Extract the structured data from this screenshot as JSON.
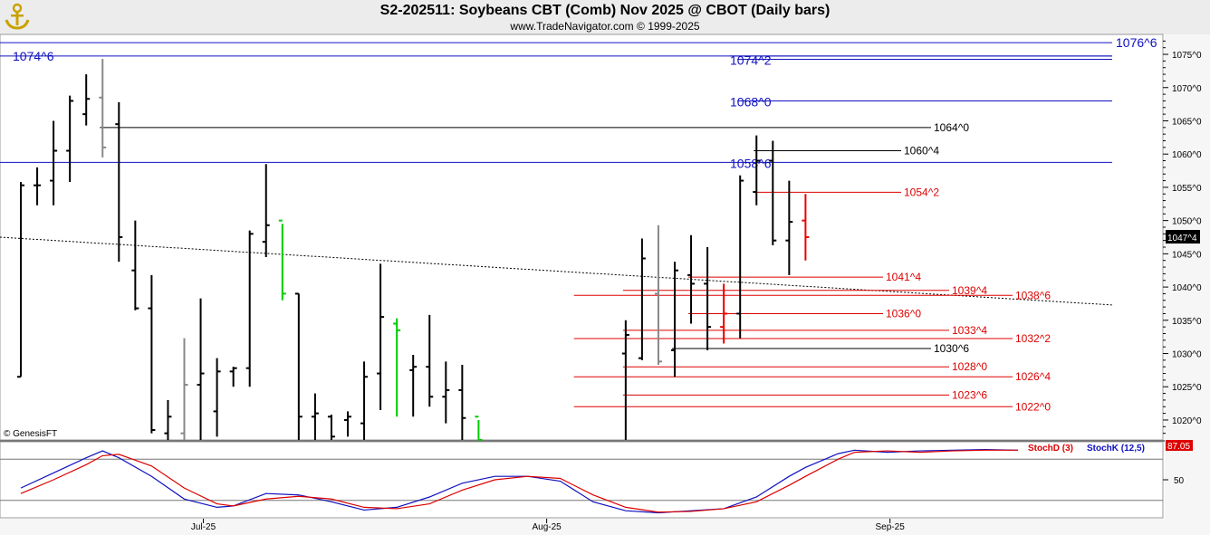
{
  "header": {
    "title": "S2-202511:  Soybeans CBT (Comb) Nov 2025 @ CBOT  (Daily bars)",
    "subtitle": "www.TradeNavigator.com © 1999-2025",
    "logo_icon": "anchor-icon"
  },
  "copyright": "© GenesisFT",
  "colors": {
    "up_bar": "#000000",
    "down_bar": "#000000",
    "highlight_green": "#00cc00",
    "highlight_red": "#ee0000",
    "gray_bar": "#888888",
    "blue_level": "#1010c0",
    "red_level": "#dd0000",
    "black_level": "#000000",
    "stochD": "#dd0000",
    "stochK": "#1010c0"
  },
  "chart_data": [
    {
      "type": "bar",
      "title": "S2-202511:  Soybeans CBT (Comb) Nov 2025 @ CBOT  (Daily bars)",
      "x_ticks": [
        {
          "label": "Jul-25",
          "bar_index": 11
        },
        {
          "label": "Aug-25",
          "bar_index": 32
        },
        {
          "label": "Sep-25",
          "bar_index": 53
        }
      ],
      "y_range": [
        1017,
        1078
      ],
      "y_tick_values": [
        1020,
        1025,
        1030,
        1035,
        1040,
        1045,
        1050,
        1055,
        1060,
        1065,
        1070,
        1075
      ],
      "y_tick_labels": [
        "1020^0",
        "1025^0",
        "1030^0",
        "1035^0",
        "1040^0",
        "1045^0",
        "1050^0",
        "1055^0",
        "1060^0",
        "1065^0",
        "1070^0",
        "1075^0"
      ],
      "last_price_label": "1047^4",
      "last_price": 1047.5,
      "bars": [
        {
          "i": 0,
          "o": 1026.5,
          "h": 1055.8,
          "l": 1026.5,
          "c": 1055.3
        },
        {
          "i": 1,
          "o": 1055.3,
          "h": 1058.0,
          "l": 1052.3,
          "c": 1055.3
        },
        {
          "i": 2,
          "o": 1056.0,
          "h": 1065.0,
          "l": 1052.3,
          "c": 1060.5
        },
        {
          "i": 3,
          "o": 1060.5,
          "h": 1068.8,
          "l": 1055.8,
          "c": 1068.0
        },
        {
          "i": 4,
          "o": 1066.0,
          "h": 1072.0,
          "l": 1064.3,
          "c": 1068.3
        },
        {
          "i": 5,
          "o": 1068.5,
          "h": 1074.3,
          "l": 1059.5,
          "c": 1061.0,
          "color": "gray"
        },
        {
          "i": 6,
          "o": 1064.5,
          "h": 1067.8,
          "l": 1043.8,
          "c": 1047.5
        },
        {
          "i": 7,
          "o": 1042.5,
          "h": 1050.0,
          "l": 1036.5,
          "c": 1036.8
        },
        {
          "i": 8,
          "o": 1036.8,
          "h": 1041.8,
          "l": 1018.0,
          "c": 1018.5
        },
        {
          "i": 9,
          "o": 1018.0,
          "h": 1023.0,
          "l": 1017.0,
          "c": 1020.5
        },
        {
          "i": 10,
          "o": 1018.0,
          "h": 1032.3,
          "l": 1017.0,
          "c": 1025.3,
          "color": "gray"
        },
        {
          "i": 11,
          "o": 1025.3,
          "h": 1038.3,
          "l": 1017.0,
          "c": 1027.0
        },
        {
          "i": 12,
          "o": 1021.3,
          "h": 1029.3,
          "l": 1017.5,
          "c": 1027.3
        },
        {
          "i": 13,
          "o": 1027.3,
          "h": 1028.0,
          "l": 1025.0,
          "c": 1027.8
        },
        {
          "i": 14,
          "o": 1027.8,
          "h": 1048.5,
          "l": 1025.0,
          "c": 1048.0
        },
        {
          "i": 15,
          "o": 1046.8,
          "h": 1058.5,
          "l": 1044.5,
          "c": 1049.3
        },
        {
          "i": 16,
          "o": 1050.0,
          "h": 1049.5,
          "l": 1038.0,
          "c": 1039.0,
          "color": "green"
        },
        {
          "i": 17,
          "o": 1039.0,
          "h": 1039.0,
          "l": 1017.0,
          "c": 1020.5
        },
        {
          "i": 18,
          "o": 1020.5,
          "h": 1024.0,
          "l": 1017.0,
          "c": 1021.0
        },
        {
          "i": 19,
          "o": 1020.5,
          "h": 1020.8,
          "l": 1017.0,
          "c": 1017.5
        },
        {
          "i": 20,
          "o": 1020.0,
          "h": 1021.3,
          "l": 1017.5,
          "c": 1020.5
        },
        {
          "i": 21,
          "o": 1019.5,
          "h": 1028.8,
          "l": 1017.0,
          "c": 1026.5
        },
        {
          "i": 22,
          "o": 1027.0,
          "h": 1043.5,
          "l": 1021.5,
          "c": 1035.5
        },
        {
          "i": 23,
          "o": 1034.5,
          "h": 1035.3,
          "l": 1020.5,
          "c": 1033.5,
          "color": "green"
        },
        {
          "i": 24,
          "o": 1027.5,
          "h": 1029.8,
          "l": 1020.5,
          "c": 1028.0
        },
        {
          "i": 25,
          "o": 1028.0,
          "h": 1035.8,
          "l": 1022.0,
          "c": 1023.5
        },
        {
          "i": 26,
          "o": 1023.5,
          "h": 1028.8,
          "l": 1019.5,
          "c": 1024.5
        },
        {
          "i": 27,
          "o": 1024.5,
          "h": 1028.3,
          "l": 1017.0,
          "c": 1020.3
        },
        {
          "i": 28,
          "o": 1020.5,
          "h": 1020.0,
          "l": 1017.0,
          "c": 1017.0,
          "color": "green"
        },
        {
          "i": 37,
          "o": 1030.0,
          "h": 1035.0,
          "l": 1017.0,
          "c": 1032.8
        },
        {
          "i": 38,
          "o": 1029.3,
          "h": 1047.3,
          "l": 1029.0,
          "c": 1044.3
        },
        {
          "i": 39,
          "o": 1039.0,
          "h": 1049.3,
          "l": 1028.3,
          "c": 1028.8,
          "color": "gray"
        },
        {
          "i": 40,
          "o": 1030.5,
          "h": 1043.8,
          "l": 1026.5,
          "c": 1042.5
        },
        {
          "i": 41,
          "o": 1041.8,
          "h": 1047.8,
          "l": 1034.5,
          "c": 1040.5
        },
        {
          "i": 42,
          "o": 1040.5,
          "h": 1046.0,
          "l": 1030.5,
          "c": 1034.0
        },
        {
          "i": 43,
          "o": 1034.0,
          "h": 1040.5,
          "l": 1031.5,
          "c": 1036.0,
          "color": "red"
        },
        {
          "i": 44,
          "o": 1036.0,
          "h": 1056.8,
          "l": 1032.3,
          "c": 1056.0
        },
        {
          "i": 45,
          "o": 1054.3,
          "h": 1062.8,
          "l": 1052.3,
          "c": 1059.0
        },
        {
          "i": 46,
          "o": 1059.0,
          "h": 1062.0,
          "l": 1046.3,
          "c": 1047.0
        },
        {
          "i": 47,
          "o": 1047.0,
          "h": 1056.0,
          "l": 1041.8,
          "c": 1049.8
        },
        {
          "i": 48,
          "o": 1050.0,
          "h": 1054.0,
          "l": 1044.0,
          "c": 1047.5,
          "color": "red"
        }
      ],
      "levels": [
        {
          "label": "1076^6",
          "value": 1076.75,
          "color": "blue",
          "from_bar": -1
        },
        {
          "label": "1074^6",
          "value": 1074.75,
          "color": "blue",
          "from_bar": -1
        },
        {
          "label": "1074^2",
          "value": 1074.25,
          "color": "blue",
          "from_bar": 44
        },
        {
          "label": "1068^0",
          "value": 1068.0,
          "color": "blue",
          "from_bar": 44
        },
        {
          "label": "1058^6",
          "value": 1058.75,
          "color": "blue",
          "from_bar": -1
        },
        {
          "label": "1064^0",
          "value": 1064.0,
          "color": "black",
          "from_bar": 5
        },
        {
          "label": "1060^4",
          "value": 1060.5,
          "color": "black",
          "from_bar": 45
        },
        {
          "label": "1054^2",
          "value": 1054.25,
          "color": "red",
          "from_bar": 45
        },
        {
          "label": "1041^4",
          "value": 1041.5,
          "color": "red",
          "from_bar": 41
        },
        {
          "label": "1039^4",
          "value": 1039.5,
          "color": "red",
          "from_bar": 37
        },
        {
          "label": "1038^6",
          "value": 1038.75,
          "color": "red",
          "from_bar": 34
        },
        {
          "label": "1036^0",
          "value": 1036.0,
          "color": "red",
          "from_bar": 41
        },
        {
          "label": "1033^4",
          "value": 1033.5,
          "color": "red",
          "from_bar": 37
        },
        {
          "label": "1032^2",
          "value": 1032.25,
          "color": "red",
          "from_bar": 34
        },
        {
          "label": "1030^6",
          "value": 1030.75,
          "color": "black",
          "from_bar": 40
        },
        {
          "label": "1028^0",
          "value": 1028.0,
          "color": "red",
          "from_bar": 37
        },
        {
          "label": "1026^4",
          "value": 1026.5,
          "color": "red",
          "from_bar": 34
        },
        {
          "label": "1023^6",
          "value": 1023.75,
          "color": "red",
          "from_bar": 37
        },
        {
          "label": "1022^0",
          "value": 1022.0,
          "color": "red",
          "from_bar": 34
        }
      ],
      "trendline": {
        "style": "dotted",
        "start_value": 1047.5,
        "end_value": 1037.3
      }
    },
    {
      "type": "line",
      "legend": [
        "StochD (3)",
        "StochK (12,5)"
      ],
      "legend_placement": "top-right",
      "last_value_label": "87.05",
      "y_range": [
        0,
        100
      ],
      "y_tick_labels": [
        "50"
      ],
      "reference_levels": [
        80,
        20
      ],
      "series": [
        {
          "name": "StochK (12,5)",
          "values": [
            [
              0,
              38
            ],
            [
              2,
              60
            ],
            [
              4,
              82
            ],
            [
              5,
              92
            ],
            [
              6,
              82
            ],
            [
              8,
              55
            ],
            [
              10,
              22
            ],
            [
              12,
              10
            ],
            [
              13,
              12
            ],
            [
              15,
              30
            ],
            [
              17,
              28
            ],
            [
              19,
              18
            ],
            [
              21,
              6
            ],
            [
              23,
              10
            ],
            [
              25,
              25
            ],
            [
              27,
              45
            ],
            [
              29,
              55
            ],
            [
              31,
              55
            ],
            [
              33,
              48
            ],
            [
              35,
              18
            ],
            [
              37,
              5
            ],
            [
              39,
              2
            ],
            [
              41,
              5
            ],
            [
              43,
              8
            ],
            [
              45,
              25
            ],
            [
              47,
              55
            ],
            [
              48,
              68
            ],
            [
              50,
              88
            ],
            [
              51,
              93
            ],
            [
              53,
              90
            ],
            [
              55,
              92
            ],
            [
              57,
              93
            ],
            [
              59,
              94
            ],
            [
              61,
              93
            ]
          ]
        },
        {
          "name": "StochD (3)",
          "values": [
            [
              0,
              30
            ],
            [
              2,
              50
            ],
            [
              4,
              72
            ],
            [
              5,
              85
            ],
            [
              6,
              87
            ],
            [
              8,
              70
            ],
            [
              10,
              38
            ],
            [
              12,
              15
            ],
            [
              13,
              12
            ],
            [
              15,
              22
            ],
            [
              17,
              26
            ],
            [
              19,
              22
            ],
            [
              21,
              10
            ],
            [
              23,
              8
            ],
            [
              25,
              15
            ],
            [
              27,
              35
            ],
            [
              29,
              50
            ],
            [
              31,
              55
            ],
            [
              33,
              52
            ],
            [
              35,
              28
            ],
            [
              37,
              10
            ],
            [
              39,
              3
            ],
            [
              41,
              4
            ],
            [
              43,
              8
            ],
            [
              45,
              18
            ],
            [
              47,
              42
            ],
            [
              48,
              55
            ],
            [
              50,
              80
            ],
            [
              51,
              90
            ],
            [
              53,
              92
            ],
            [
              55,
              90
            ],
            [
              57,
              92
            ],
            [
              59,
              93
            ],
            [
              61,
              93
            ]
          ]
        }
      ]
    }
  ]
}
